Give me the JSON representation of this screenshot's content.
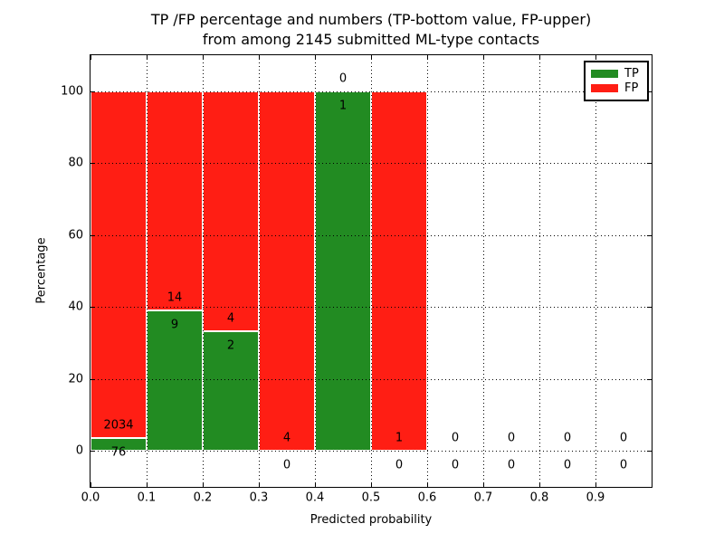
{
  "chart_data": {
    "type": "bar",
    "stacked": true,
    "title_line1": "TP /FP percentage and numbers (TP-bottom value, FP-upper)",
    "title_line2": "from among 2145 submitted ML-type contacts",
    "xlabel": "Predicted probability",
    "ylabel": "Percentage",
    "xlim": [
      0.0,
      1.0
    ],
    "ylim": [
      -10,
      110
    ],
    "x_tick_values": [
      0.0,
      0.1,
      0.2,
      0.3,
      0.4,
      0.5,
      0.6,
      0.7,
      0.8,
      0.9
    ],
    "x_tick_labels": [
      "0.0",
      "0.1",
      "0.2",
      "0.3",
      "0.4",
      "0.5",
      "0.6",
      "0.7",
      "0.8",
      "0.9"
    ],
    "y_tick_values": [
      0,
      20,
      40,
      60,
      80,
      100
    ],
    "grid": true,
    "grid_style": "dotted",
    "legend_position": "upper right",
    "bin_width": 0.1,
    "bin_starts": [
      0.0,
      0.1,
      0.2,
      0.3,
      0.4,
      0.5,
      0.6,
      0.7,
      0.8,
      0.9
    ],
    "total_contacts": 2145,
    "bar_unit": "percent of bin total (each non-empty bin stacks to 100%)",
    "series": [
      {
        "name": "TP",
        "color": "#228b22",
        "counts": [
          76,
          9,
          2,
          0,
          1,
          0,
          0,
          0,
          0,
          0
        ]
      },
      {
        "name": "FP",
        "color": "#ff1e14",
        "counts": [
          2034,
          14,
          4,
          4,
          0,
          1,
          0,
          0,
          0,
          0
        ]
      }
    ],
    "annotation_note": "FP count drawn above TP/FP boundary, TP count drawn below it"
  }
}
